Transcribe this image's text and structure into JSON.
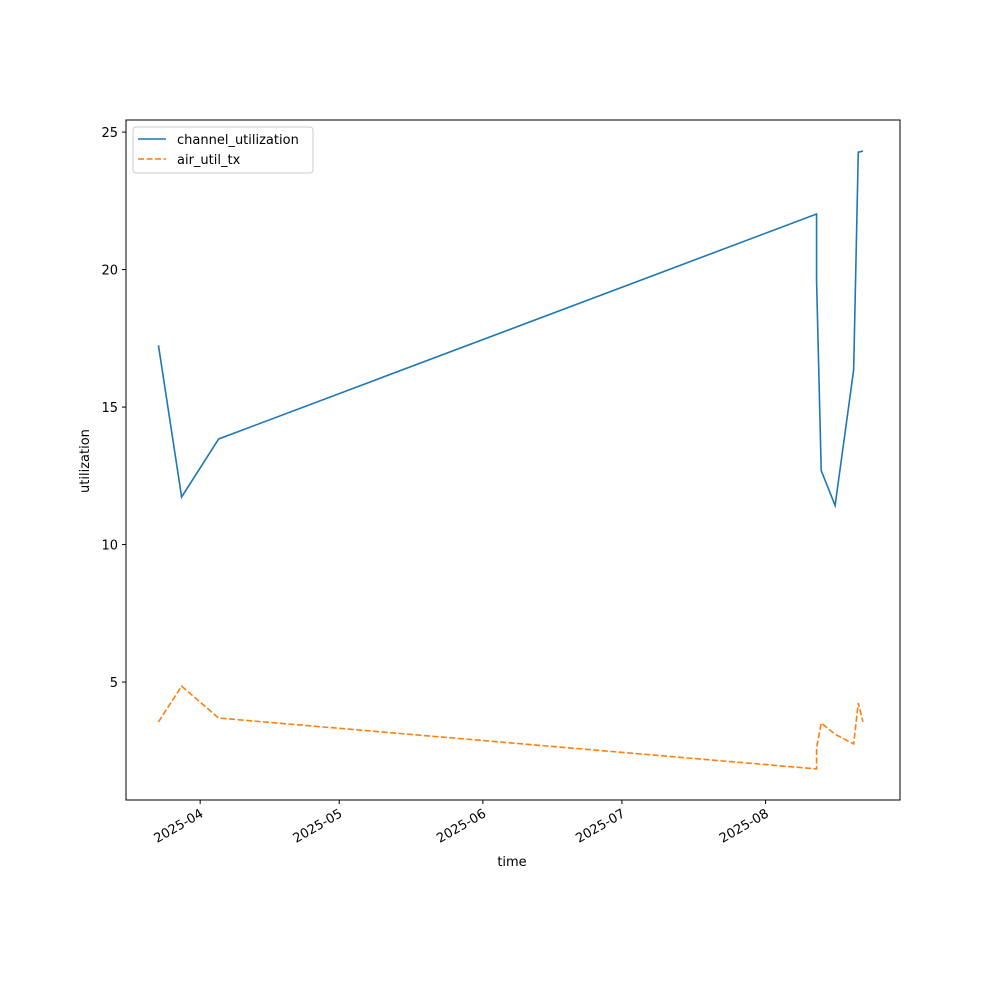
{
  "chart_data": {
    "type": "line",
    "xlabel": "time",
    "ylabel": "utilization",
    "x": [
      "2025-03-23",
      "2025-03-28",
      "2025-04-05",
      "2025-08-12",
      "2025-08-12",
      "2025-08-13",
      "2025-08-16",
      "2025-08-20",
      "2025-08-21",
      "2025-08-22"
    ],
    "series": [
      {
        "name": "channel_utilization",
        "color": "#1f77b4",
        "dash": "solid",
        "values": [
          17.25,
          11.73,
          13.84,
          22.02,
          19.6,
          12.69,
          11.42,
          16.35,
          24.27,
          24.31
        ]
      },
      {
        "name": "air_util_tx",
        "color": "#ff7f0e",
        "dash": "dashed",
        "values": [
          3.55,
          4.85,
          3.69,
          1.84,
          2.6,
          3.51,
          3.1,
          2.75,
          4.24,
          3.55
        ]
      }
    ],
    "xlim": [
      "2025-03-16",
      "2025-08-30"
    ],
    "xticks": [
      {
        "value": "2025-04-01",
        "label": "2025-04"
      },
      {
        "value": "2025-05-01",
        "label": "2025-05"
      },
      {
        "value": "2025-06-01",
        "label": "2025-06"
      },
      {
        "value": "2025-07-01",
        "label": "2025-07"
      },
      {
        "value": "2025-08-01",
        "label": "2025-08"
      }
    ],
    "ylim": [
      0.71,
      25.44
    ],
    "yticks": [
      5,
      10,
      15,
      20,
      25
    ],
    "grid": false,
    "legend": "upper left"
  }
}
